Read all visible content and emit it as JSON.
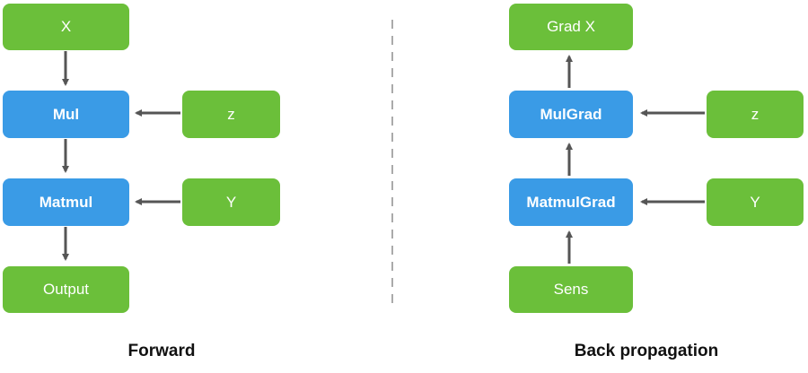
{
  "forward": {
    "caption": "Forward",
    "nodes": {
      "x": "X",
      "mul": "Mul",
      "z": "z",
      "matmul": "Matmul",
      "y": "Y",
      "output": "Output"
    }
  },
  "backward": {
    "caption": "Back propagation",
    "nodes": {
      "grad_x": "Grad X",
      "mulgrad": "MulGrad",
      "z": "z",
      "matmulgrad": "MatmulGrad",
      "y": "Y",
      "sens": "Sens"
    }
  },
  "colors": {
    "green_node": "#6bbf3a",
    "blue_node": "#3a9be6",
    "arrow": "#555555",
    "divider": "#aaaaaa"
  }
}
